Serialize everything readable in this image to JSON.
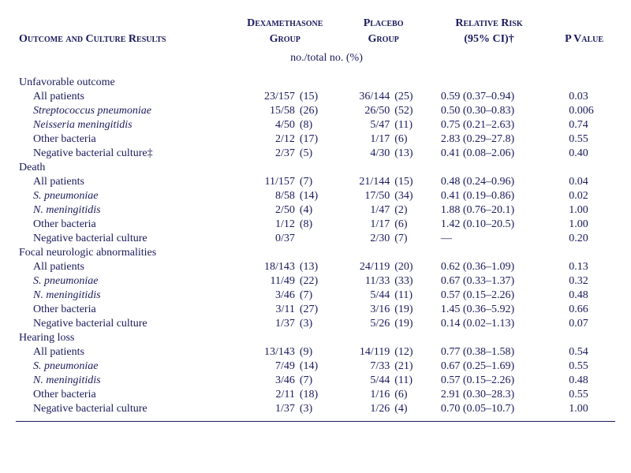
{
  "headers": {
    "outcome": "Outcome and Culture Results",
    "dex_top": "Dexamethasone",
    "dex_bot": "Group",
    "pla_top": "Placebo",
    "pla_bot": "Group",
    "rr_top": "Relative Risk",
    "rr_bot": "(95% CI)†",
    "pv": "P Value",
    "subhead": "no./total no. (%)"
  },
  "sections": [
    {
      "title": "Unfavorable outcome",
      "rows": [
        {
          "label": "All patients",
          "dex": "23/157",
          "dexp": "(15)",
          "pla": "36/144",
          "plap": "(25)",
          "rr": "0.59 (0.37–0.94)",
          "pv": "0.03"
        },
        {
          "label": "Streptococcus pneumoniae",
          "italic": true,
          "dex": "15/58",
          "dexp": "(26)",
          "pla": "26/50",
          "plap": "(52)",
          "rr": "0.50 (0.30–0.83)",
          "pv": "0.006"
        },
        {
          "label": "Neisseria meningitidis",
          "italic": true,
          "dex": "4/50",
          "dexp": "(8)",
          "pla": "5/47",
          "plap": "(11)",
          "rr": "0.75 (0.21–2.63)",
          "pv": "0.74"
        },
        {
          "label": "Other bacteria",
          "dex": "2/12",
          "dexp": "(17)",
          "pla": "1/17",
          "plap": "(6)",
          "rr": "2.83 (0.29–27.8)",
          "pv": "0.55"
        },
        {
          "label": "Negative bacterial culture‡",
          "dex": "2/37",
          "dexp": "(5)",
          "pla": "4/30",
          "plap": "(13)",
          "rr": "0.41 (0.08–2.06)",
          "pv": "0.40"
        }
      ]
    },
    {
      "title": "Death",
      "rows": [
        {
          "label": "All patients",
          "dex": "11/157",
          "dexp": "(7)",
          "pla": "21/144",
          "plap": "(15)",
          "rr": "0.48 (0.24–0.96)",
          "pv": "0.04"
        },
        {
          "label": "S. pneumoniae",
          "italic": true,
          "dex": "8/58",
          "dexp": "(14)",
          "pla": "17/50",
          "plap": "(34)",
          "rr": "0.41 (0.19–0.86)",
          "pv": "0.02"
        },
        {
          "label": "N. meningitidis",
          "italic": true,
          "dex": "2/50",
          "dexp": "(4)",
          "pla": "1/47",
          "plap": "(2)",
          "rr": "1.88 (0.76–20.1)",
          "pv": "1.00"
        },
        {
          "label": "Other bacteria",
          "dex": "1/12",
          "dexp": "(8)",
          "pla": "1/17",
          "plap": "(6)",
          "rr": "1.42 (0.10–20.5)",
          "pv": "1.00"
        },
        {
          "label": "Negative bacterial culture",
          "dex": "0/37",
          "dexp": "",
          "pla": "2/30",
          "plap": "(7)",
          "rr": "—",
          "pv": "0.20"
        }
      ]
    },
    {
      "title": "Focal neurologic abnormalities",
      "rows": [
        {
          "label": "All patients",
          "dex": "18/143",
          "dexp": "(13)",
          "pla": "24/119",
          "plap": "(20)",
          "rr": "0.62 (0.36–1.09)",
          "pv": "0.13"
        },
        {
          "label": "S. pneumoniae",
          "italic": true,
          "dex": "11/49",
          "dexp": "(22)",
          "pla": "11/33",
          "plap": "(33)",
          "rr": "0.67 (0.33–1.37)",
          "pv": "0.32"
        },
        {
          "label": "N. meningitidis",
          "italic": true,
          "dex": "3/46",
          "dexp": "(7)",
          "pla": "5/44",
          "plap": "(11)",
          "rr": "0.57 (0.15–2.26)",
          "pv": "0.48"
        },
        {
          "label": "Other bacteria",
          "dex": "3/11",
          "dexp": "(27)",
          "pla": "3/16",
          "plap": "(19)",
          "rr": "1.45 (0.36–5.92)",
          "pv": "0.66"
        },
        {
          "label": "Negative bacterial culture",
          "dex": "1/37",
          "dexp": "(3)",
          "pla": "5/26",
          "plap": "(19)",
          "rr": "0.14 (0.02–1.13)",
          "pv": "0.07"
        }
      ]
    },
    {
      "title": "Hearing loss",
      "rows": [
        {
          "label": "All patients",
          "dex": "13/143",
          "dexp": "(9)",
          "pla": "14/119",
          "plap": "(12)",
          "rr": "0.77 (0.38–1.58)",
          "pv": "0.54"
        },
        {
          "label": "S. pneumoniae",
          "italic": true,
          "dex": "7/49",
          "dexp": "(14)",
          "pla": "7/33",
          "plap": "(21)",
          "rr": "0.67 (0.25–1.69)",
          "pv": "0.55"
        },
        {
          "label": "N. meningitidis",
          "italic": true,
          "dex": "3/46",
          "dexp": "(7)",
          "pla": "5/44",
          "plap": "(11)",
          "rr": "0.57 (0.15–2.26)",
          "pv": "0.48"
        },
        {
          "label": "Other bacteria",
          "dex": "2/11",
          "dexp": "(18)",
          "pla": "1/16",
          "plap": "(6)",
          "rr": "2.91 (0.30–28.3)",
          "pv": "0.55"
        },
        {
          "label": "Negative bacterial culture",
          "dex": "1/37",
          "dexp": "(3)",
          "pla": "1/26",
          "plap": "(4)",
          "rr": "0.70 (0.05–10.7)",
          "pv": "1.00"
        }
      ]
    }
  ]
}
